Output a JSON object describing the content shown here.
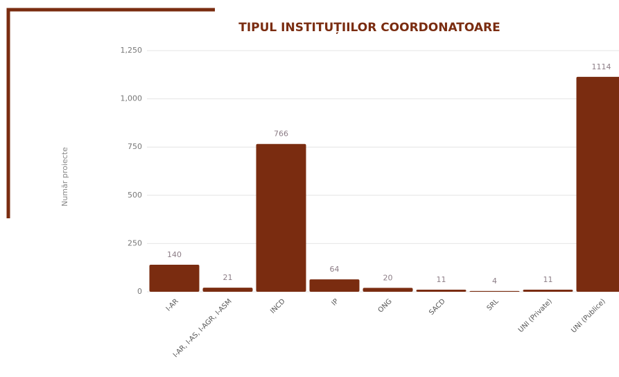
{
  "chart_data": {
    "type": "bar",
    "title": "TIPUL INSTITUȚIILOR COORDONATOARE",
    "y_label": "Număr proiecte",
    "categories": [
      "I-AR",
      "I-AR, I-AS, I-AGR, I-ASM",
      "INCD",
      "IP",
      "ONG",
      "SACD",
      "SRL",
      "UNI (Private)",
      "UNI (Publice)"
    ],
    "values": [
      140,
      21,
      766,
      64,
      20,
      11,
      4,
      11,
      1114
    ],
    "color": "#7a2c10",
    "ylim": [
      0,
      1250
    ],
    "yticks": [
      0,
      250,
      500,
      750,
      {
        "value": 1000,
        "label": "1,000"
      },
      {
        "value": 1250,
        "label": "1,250"
      }
    ],
    "grid": true
  }
}
